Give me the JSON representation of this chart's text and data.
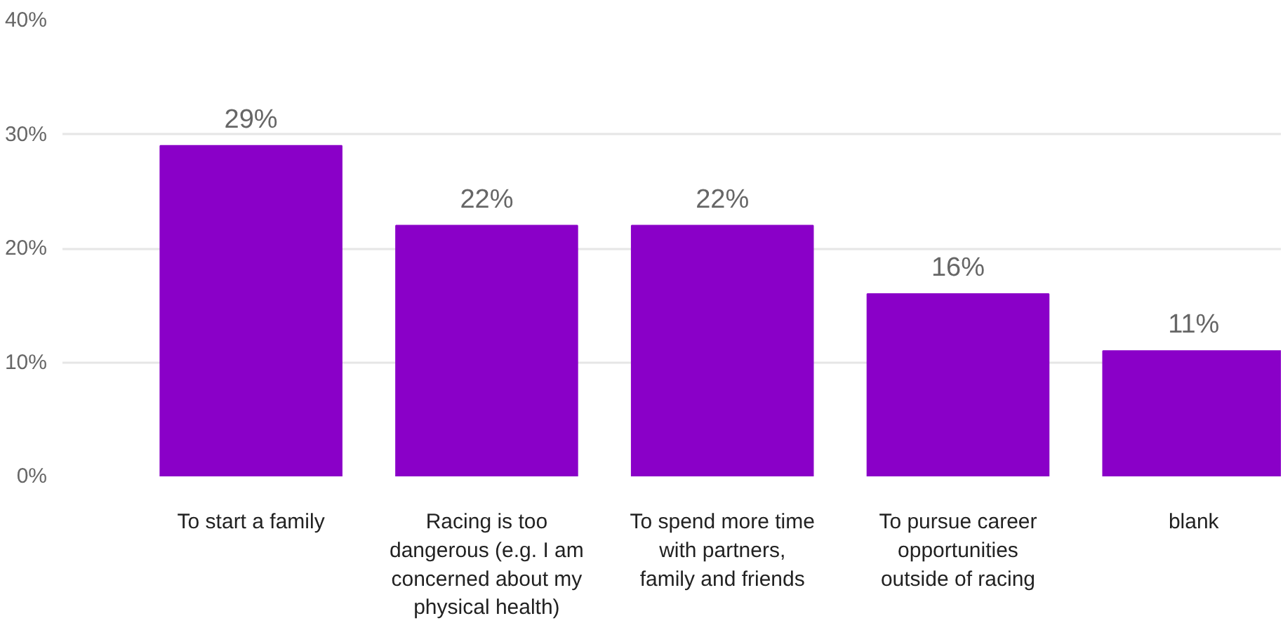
{
  "chart_data": {
    "type": "bar",
    "categories": [
      "To start a family",
      "Racing is too dangerous (e.g. I am concerned about my physical health)",
      "To spend more time with partners, family and friends",
      "To pursue career opportunities outside of racing",
      "blank"
    ],
    "values": [
      29,
      22,
      22,
      16,
      11
    ],
    "value_labels": [
      "29%",
      "22%",
      "22%",
      "16%",
      "11%"
    ],
    "color": "#8a00c8",
    "ylim": [
      0,
      40
    ],
    "yticks": [
      {
        "value": 0,
        "label": "0%"
      },
      {
        "value": 10,
        "label": "10%"
      },
      {
        "value": 20,
        "label": "20%"
      },
      {
        "value": 30,
        "label": "30%"
      },
      {
        "value": 40,
        "label": "40%"
      }
    ],
    "grid": "y"
  }
}
